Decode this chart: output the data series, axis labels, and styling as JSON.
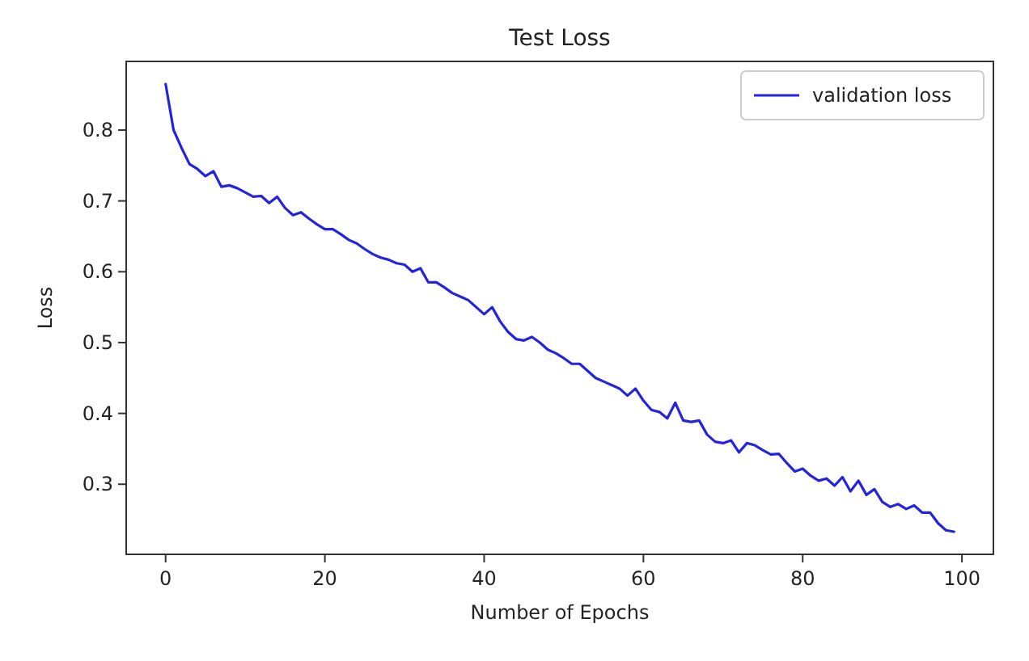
{
  "chart_data": {
    "type": "line",
    "title": "Test Loss",
    "xlabel": "Number of Epochs",
    "ylabel": "Loss",
    "x": [
      0,
      1,
      2,
      3,
      4,
      5,
      6,
      7,
      8,
      9,
      10,
      11,
      12,
      13,
      14,
      15,
      16,
      17,
      18,
      19,
      20,
      21,
      22,
      23,
      24,
      25,
      26,
      27,
      28,
      29,
      30,
      31,
      32,
      33,
      34,
      35,
      36,
      37,
      38,
      39,
      40,
      41,
      42,
      43,
      44,
      45,
      46,
      47,
      48,
      49,
      50,
      51,
      52,
      53,
      54,
      55,
      56,
      57,
      58,
      59,
      60,
      61,
      62,
      63,
      64,
      65,
      66,
      67,
      68,
      69,
      70,
      71,
      72,
      73,
      74,
      75,
      76,
      77,
      78,
      79,
      80,
      81,
      82,
      83,
      84,
      85,
      86,
      87,
      88,
      89,
      90,
      91,
      92,
      93,
      94,
      95,
      96,
      97,
      98,
      99
    ],
    "series": [
      {
        "name": "validation loss",
        "color": "#2424dc",
        "values": [
          0.865,
          0.8,
          0.775,
          0.752,
          0.745,
          0.735,
          0.742,
          0.72,
          0.722,
          0.718,
          0.712,
          0.706,
          0.707,
          0.697,
          0.706,
          0.69,
          0.68,
          0.684,
          0.675,
          0.667,
          0.66,
          0.66,
          0.653,
          0.645,
          0.64,
          0.632,
          0.625,
          0.62,
          0.617,
          0.612,
          0.61,
          0.6,
          0.605,
          0.585,
          0.585,
          0.578,
          0.57,
          0.565,
          0.56,
          0.55,
          0.54,
          0.55,
          0.53,
          0.515,
          0.505,
          0.503,
          0.508,
          0.5,
          0.49,
          0.485,
          0.478,
          0.47,
          0.47,
          0.46,
          0.45,
          0.445,
          0.44,
          0.435,
          0.425,
          0.435,
          0.418,
          0.405,
          0.402,
          0.393,
          0.415,
          0.39,
          0.388,
          0.39,
          0.37,
          0.36,
          0.358,
          0.362,
          0.345,
          0.358,
          0.355,
          0.348,
          0.342,
          0.343,
          0.33,
          0.318,
          0.322,
          0.312,
          0.305,
          0.308,
          0.298,
          0.31,
          0.29,
          0.305,
          0.285,
          0.293,
          0.275,
          0.268,
          0.272,
          0.265,
          0.27,
          0.26,
          0.26,
          0.245,
          0.235,
          0.233
        ]
      }
    ],
    "xlim": [
      -4.95,
      103.95
    ],
    "ylim": [
      0.201,
      0.897
    ],
    "xticks": [
      0,
      20,
      40,
      60,
      80,
      100
    ],
    "yticks": [
      0.3,
      0.4,
      0.5,
      0.6,
      0.7,
      0.8
    ],
    "grid": false,
    "legend": "top right",
    "marker": "none",
    "line_style": "solid"
  }
}
